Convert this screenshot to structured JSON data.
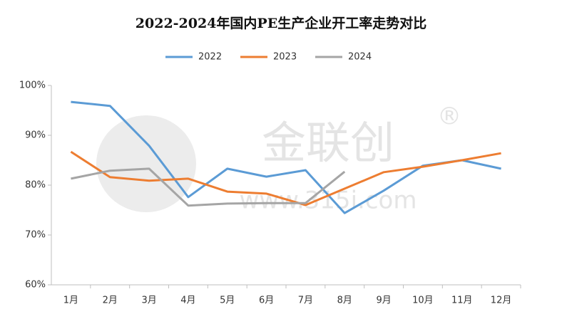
{
  "chart_data": {
    "type": "line",
    "title": "2022-2024年国内PE生产企业开工率走势对比",
    "watermark": {
      "brand": "金联创",
      "url": "www.315i.com",
      "mark": "®"
    },
    "categories": [
      "1月",
      "2月",
      "3月",
      "4月",
      "5月",
      "6月",
      "7月",
      "8月",
      "9月",
      "10月",
      "11月",
      "12月"
    ],
    "series": [
      {
        "name": "2022",
        "color": "#5b9bd5",
        "values": [
          96.7,
          95.9,
          87.9,
          77.6,
          83.3,
          81.7,
          83.0,
          74.4,
          78.9,
          83.9,
          85.0,
          83.3
        ]
      },
      {
        "name": "2023",
        "color": "#ed7d31",
        "values": [
          86.7,
          81.6,
          80.9,
          81.3,
          78.7,
          78.3,
          76.0,
          79.3,
          82.6,
          83.7,
          85.0,
          86.4
        ]
      },
      {
        "name": "2024",
        "color": "#a5a5a5",
        "values": [
          81.3,
          82.9,
          83.3,
          75.9,
          76.3,
          76.4,
          76.4,
          82.7,
          null,
          null,
          null,
          null
        ]
      }
    ],
    "ylim": [
      60,
      100
    ],
    "yticks": [
      {
        "value": 60,
        "label": "60%"
      },
      {
        "value": 70,
        "label": "70%"
      },
      {
        "value": 80,
        "label": "80%"
      },
      {
        "value": 90,
        "label": "90%"
      },
      {
        "value": 100,
        "label": "100%"
      }
    ],
    "grid": false,
    "legend": "top"
  }
}
